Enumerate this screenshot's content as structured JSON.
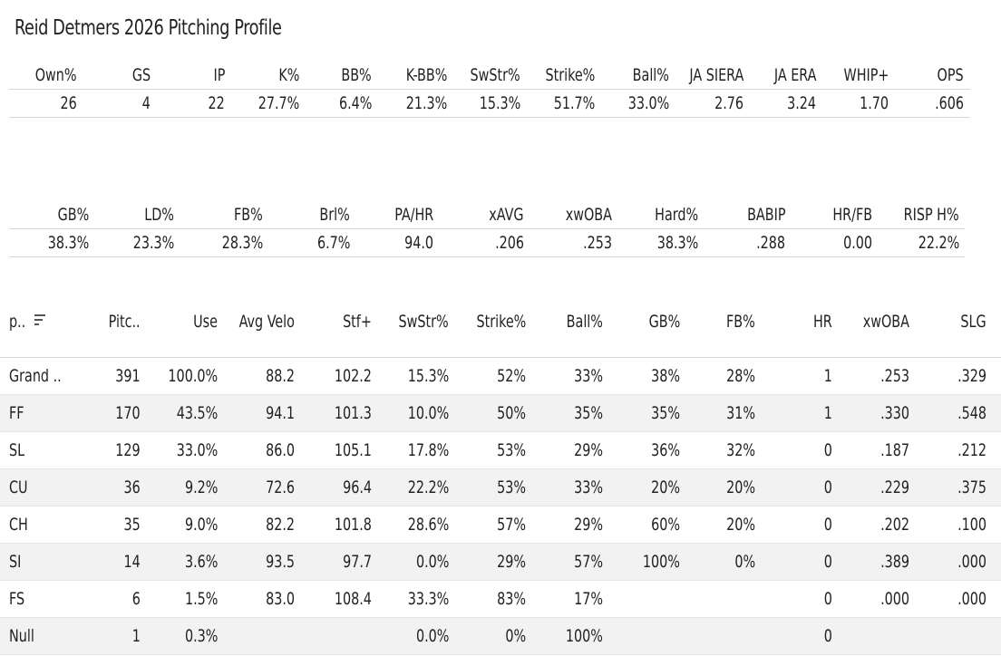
{
  "title": "Reid Detmers 2026 Pitching Profile",
  "strip1": {
    "headers": [
      "Own%",
      "GS",
      "IP",
      "K%",
      "BB%",
      "K-BB%",
      "SwStr%",
      "Strike%",
      "Ball%",
      "JA SIERA",
      "JA ERA",
      "WHIP+",
      "OPS"
    ],
    "values": [
      "26",
      "4",
      "22",
      "27.7%",
      "6.4%",
      "21.3%",
      "15.3%",
      "51.7%",
      "33.0%",
      "2.76",
      "3.24",
      "1.70",
      ".606"
    ]
  },
  "strip2": {
    "headers": [
      "GB%",
      "LD%",
      "FB%",
      "Brl%",
      "PA/HR",
      "xAVG",
      "xwOBA",
      "Hard%",
      "BABIP",
      "HR/FB",
      "RISP H%"
    ],
    "values": [
      "38.3%",
      "23.3%",
      "28.3%",
      "6.7%",
      "94.0",
      ".206",
      ".253",
      "38.3%",
      ".288",
      "0.00",
      "22.2%"
    ]
  },
  "pitch_table": {
    "headers": [
      "p..",
      "Pitc..",
      "Use",
      "Avg Velo",
      "Stf+",
      "SwStr%",
      "Strike%",
      "Ball%",
      "GB%",
      "FB%",
      "HR",
      "xwOBA",
      "SLG"
    ],
    "sort_icon": "sort-lines-icon",
    "rows": [
      [
        "Grand ..",
        "391",
        "100.0%",
        "88.2",
        "102.2",
        "15.3%",
        "52%",
        "33%",
        "38%",
        "28%",
        "1",
        ".253",
        ".329"
      ],
      [
        "FF",
        "170",
        "43.5%",
        "94.1",
        "101.3",
        "10.0%",
        "50%",
        "35%",
        "35%",
        "31%",
        "1",
        ".330",
        ".548"
      ],
      [
        "SL",
        "129",
        "33.0%",
        "86.0",
        "105.1",
        "17.8%",
        "53%",
        "29%",
        "36%",
        "32%",
        "0",
        ".187",
        ".212"
      ],
      [
        "CU",
        "36",
        "9.2%",
        "72.6",
        "96.4",
        "22.2%",
        "53%",
        "33%",
        "20%",
        "20%",
        "0",
        ".229",
        ".375"
      ],
      [
        "CH",
        "35",
        "9.0%",
        "82.2",
        "101.8",
        "28.6%",
        "57%",
        "29%",
        "60%",
        "20%",
        "0",
        ".202",
        ".100"
      ],
      [
        "SI",
        "14",
        "3.6%",
        "93.5",
        "97.7",
        "0.0%",
        "29%",
        "57%",
        "100%",
        "0%",
        "0",
        ".389",
        ".000"
      ],
      [
        "FS",
        "6",
        "1.5%",
        "83.0",
        "108.4",
        "33.3%",
        "83%",
        "17%",
        "",
        "",
        "0",
        ".000",
        ".000"
      ],
      [
        "Null",
        "1",
        "0.3%",
        "",
        "",
        "0.0%",
        "0%",
        "100%",
        "",
        "",
        "0",
        "",
        ""
      ]
    ]
  }
}
